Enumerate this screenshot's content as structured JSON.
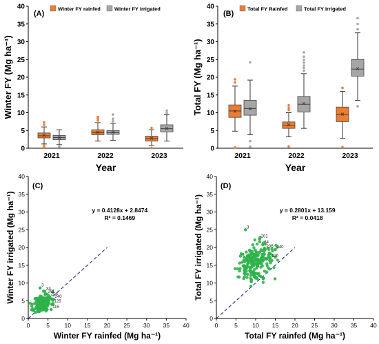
{
  "colors": {
    "rainfed": "#ed7d31",
    "irrigated": "#a6a6a6",
    "scatter": "#2db34a",
    "line": "#1f2f8f",
    "axis": "#000000"
  },
  "chart_data": [
    {
      "id": "A",
      "panel_label": "(A)",
      "type": "box",
      "ylabel": "Winter FY (Mg ha⁻¹)",
      "xlabel": "Year",
      "categories": [
        "2021",
        "2022",
        "2023"
      ],
      "ylim": [
        0,
        40
      ],
      "yticks": [
        "0",
        "5",
        "10",
        "15",
        "20",
        "25",
        "30",
        "35",
        "40"
      ],
      "legend": {
        "position": "top",
        "items": [
          "Winter FY rainfed",
          "Winter FY irrigated"
        ]
      },
      "series": [
        {
          "name": "Winter FY rainfed",
          "color": "rainfed",
          "boxes": [
            {
              "min": 1.2,
              "q1": 2.9,
              "median": 3.5,
              "mean": 3.6,
              "q3": 4.3,
              "max": 6.0,
              "outliers": [
                0.3,
                0.8,
                6.6,
                7.3
              ]
            },
            {
              "min": 2.0,
              "q1": 3.8,
              "median": 4.4,
              "mean": 4.5,
              "q3": 5.2,
              "max": 7.2,
              "outliers": [
                7.8,
                8.3,
                8.8
              ]
            },
            {
              "min": 0.8,
              "q1": 2.0,
              "median": 2.7,
              "mean": 2.8,
              "q3": 3.4,
              "max": 5.2,
              "outliers": [
                0.1,
                5.7
              ]
            }
          ]
        },
        {
          "name": "Winter FY irrigated",
          "color": "irrigated",
          "boxes": [
            {
              "min": 1.0,
              "q1": 2.4,
              "median": 3.0,
              "mean": 3.0,
              "q3": 3.6,
              "max": 5.2,
              "outliers": [
                0.4
              ]
            },
            {
              "min": 2.2,
              "q1": 3.9,
              "median": 4.4,
              "mean": 4.5,
              "q3": 5.0,
              "max": 7.0,
              "outliers": [
                7.6,
                8.3,
                9.5
              ]
            },
            {
              "min": 2.0,
              "q1": 4.6,
              "median": 5.5,
              "mean": 5.6,
              "q3": 6.6,
              "max": 9.4,
              "outliers": [
                9.9,
                10.6
              ]
            }
          ]
        }
      ]
    },
    {
      "id": "B",
      "panel_label": "(B)",
      "type": "box",
      "ylabel": "Total FY (Mg ha⁻¹)",
      "xlabel": "Year",
      "categories": [
        "2021",
        "2022",
        "2023"
      ],
      "ylim": [
        0,
        40
      ],
      "yticks": [
        "0",
        "5",
        "10",
        "15",
        "20",
        "25",
        "30",
        "35",
        "40"
      ],
      "legend": {
        "position": "top",
        "items": [
          "Total FY Rainfed",
          "Total FY Irrigated"
        ]
      },
      "series": [
        {
          "name": "Total FY Rainfed",
          "color": "rainfed",
          "boxes": [
            {
              "min": 4.8,
              "q1": 8.7,
              "median": 10.5,
              "mean": 10.4,
              "q3": 12.2,
              "max": 17.5,
              "outliers": [
                0.2,
                18.5,
                19.4
              ]
            },
            {
              "min": 3.2,
              "q1": 5.6,
              "median": 6.5,
              "mean": 6.6,
              "q3": 7.4,
              "max": 10.0,
              "outliers": [
                10.8,
                11.4,
                12.1,
                0.5
              ]
            },
            {
              "min": 2.8,
              "q1": 7.5,
              "median": 9.5,
              "mean": 9.6,
              "q3": 11.6,
              "max": 16.0,
              "outliers": [
                0.3,
                17.0
              ]
            }
          ]
        },
        {
          "name": "Total FY Irrigated",
          "color": "irrigated",
          "boxes": [
            {
              "min": 3.8,
              "q1": 9.3,
              "median": 11.2,
              "mean": 11.1,
              "q3": 13.5,
              "max": 19.2,
              "outliers": [
                0.4,
                2.0,
                24.2
              ]
            },
            {
              "min": 5.6,
              "q1": 10.2,
              "median": 12.4,
              "mean": 12.6,
              "q3": 14.6,
              "max": 21.0,
              "outliers": [
                21.8,
                22.6,
                23.3,
                24.1,
                24.9,
                25.8,
                27.0
              ]
            },
            {
              "min": 13.5,
              "q1": 20.3,
              "median": 22.3,
              "mean": 22.4,
              "q3": 25.0,
              "max": 32.5,
              "outliers": [
                11.8,
                33.5,
                35.0,
                36.6
              ]
            }
          ]
        }
      ]
    },
    {
      "id": "C",
      "panel_label": "(C)",
      "type": "scatter",
      "xlabel": "Winter FY rainfed (Mg ha⁻¹)",
      "ylabel": "Winter FY irrigated (Mg ha⁻¹)",
      "xlim": [
        0,
        40
      ],
      "ylim": [
        0,
        40
      ],
      "ticks": [
        "0",
        "5",
        "10",
        "15",
        "20",
        "25",
        "30",
        "35",
        "40"
      ],
      "equation": "y = 0.4128x + 2.8474",
      "r2": "R² = 0.1469",
      "cluster": {
        "x_center": 3.6,
        "x_spread": 1.1,
        "y_center": 4.3,
        "y_spread": 1.2,
        "n": 190,
        "seed": 11
      },
      "labels": [
        {
          "text": "3",
          "x": 3.0,
          "y": 8.6
        },
        {
          "text": "33",
          "x": 4.2,
          "y": 7.7
        },
        {
          "text": "201",
          "x": 4.6,
          "y": 6.9
        },
        {
          "text": "206",
          "x": 5.4,
          "y": 6.1
        },
        {
          "text": "240",
          "x": 6.4,
          "y": 5.4
        },
        {
          "text": "126",
          "x": 6.2,
          "y": 4.2
        },
        {
          "text": "115",
          "x": 5.8,
          "y": 2.5
        }
      ],
      "one_to_one": [
        0,
        20
      ]
    },
    {
      "id": "D",
      "panel_label": "(D)",
      "type": "scatter",
      "xlabel": "Total FY rainfed (Mg ha⁻¹)",
      "ylabel": "Total FY irrigated (Mg ha⁻¹)",
      "xlim": [
        0,
        40
      ],
      "ylim": [
        0,
        40
      ],
      "ticks": [
        "0",
        "5",
        "10",
        "15",
        "20",
        "25",
        "30",
        "35",
        "40"
      ],
      "equation": "y = 0.2801x + 13.159",
      "r2": "R² = 0.0418",
      "cluster": {
        "x_center": 9.5,
        "x_spread": 2.3,
        "y_center": 15.8,
        "y_spread": 2.5,
        "n": 210,
        "seed": 29
      },
      "labels": [
        {
          "text": "3",
          "x": 7.4,
          "y": 25.0
        },
        {
          "text": "201",
          "x": 11.0,
          "y": 22.4
        },
        {
          "text": "64",
          "x": 11.8,
          "y": 20.8
        },
        {
          "text": "206",
          "x": 12.4,
          "y": 19.6
        },
        {
          "text": "240",
          "x": 15.0,
          "y": 19.4
        },
        {
          "text": "126",
          "x": 13.7,
          "y": 17.0
        }
      ],
      "one_to_one": [
        0,
        20
      ]
    }
  ]
}
